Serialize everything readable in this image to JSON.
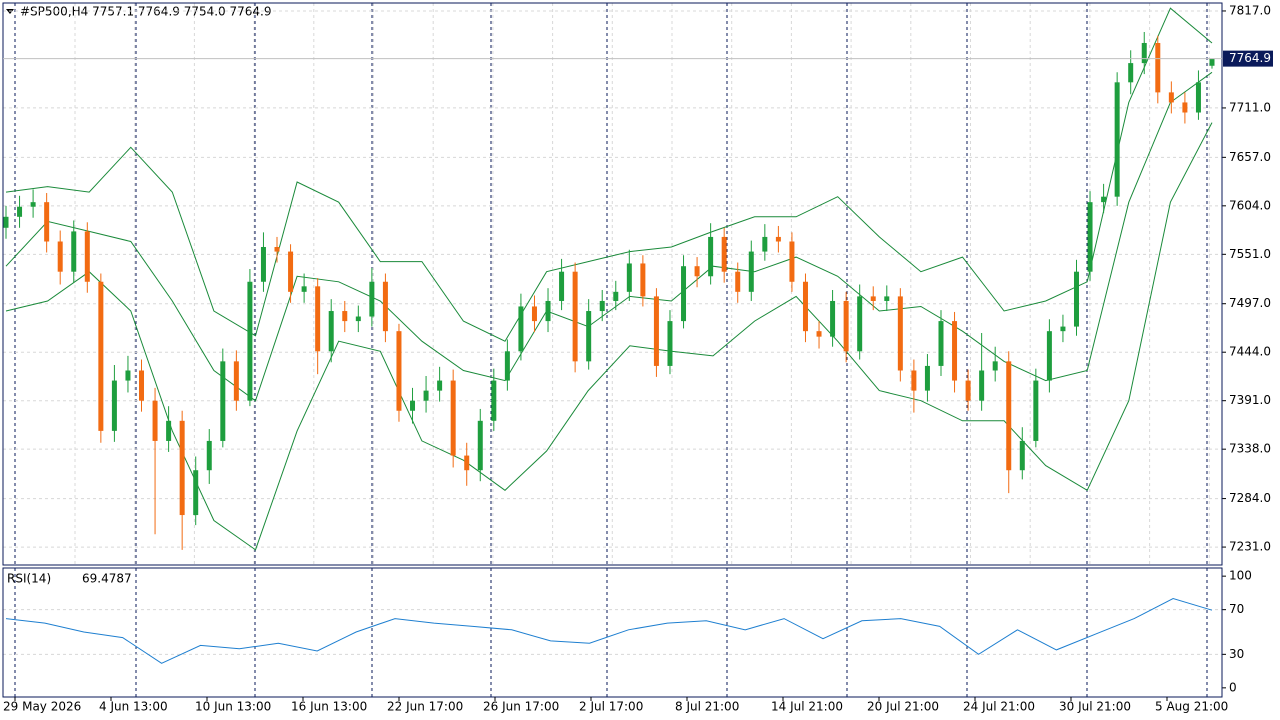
{
  "chart_data": [
    {
      "type": "candlestick",
      "title": "#SP500,H4  7757.1 7764.9 7754.0 7764.9",
      "up_color": "#1e9e3e",
      "down_color": "#f26b12",
      "band_color": "#1a8a3a",
      "grid": true,
      "ylim": [
        7211.4,
        7825.7
      ],
      "yticks": [
        {
          "value": 7817,
          "label": "7817.0"
        },
        {
          "value": 7711,
          "label": "7711.0"
        },
        {
          "value": 7657,
          "label": "7657.0"
        },
        {
          "value": 7604,
          "label": "7604.0"
        },
        {
          "value": 7551,
          "label": "7551.0"
        },
        {
          "value": 7497,
          "label": "7497.0"
        },
        {
          "value": 7444,
          "label": "7444.0"
        },
        {
          "value": 7391,
          "label": "7391.0"
        },
        {
          "value": 7338,
          "label": "7338.0"
        },
        {
          "value": 7284,
          "label": "7284.0"
        },
        {
          "value": 7231,
          "label": "7231.0"
        }
      ],
      "x_labels": [
        "29 May 2026",
        "4 Jun 13:00",
        "10 Jun 13:00",
        "16 Jun 13:00",
        "22 Jun 17:00",
        "26 Jun 17:00",
        "2 Jul 17:00",
        "8 Jul 21:00",
        "14 Jul 21:00",
        "20 Jul 21:00",
        "24 Jul 21:00",
        "30 Jul 21:00",
        "5 Aug 21:00"
      ],
      "open": [
        7580,
        7592,
        7603,
        7608,
        7565,
        7532,
        7576,
        7521,
        7358,
        7413,
        7424,
        7391,
        7347,
        7369,
        7266,
        7315,
        7347,
        7434,
        7391,
        7521,
        7559,
        7554,
        7510,
        7516,
        7445,
        7489,
        7478,
        7483,
        7521,
        7467,
        7380,
        7391,
        7402,
        7413,
        7331,
        7315,
        7369,
        7413,
        7445,
        7494,
        7478,
        7500,
        7532,
        7434,
        7489,
        7500,
        7510,
        7541,
        7505,
        7429,
        7478,
        7538,
        7527,
        7570,
        7532,
        7510,
        7554,
        7570,
        7565,
        7521,
        7467,
        7461,
        7500,
        7445,
        7505,
        7500,
        7505,
        7424,
        7402,
        7429,
        7478,
        7413,
        7391,
        7424,
        7434,
        7315,
        7347,
        7413,
        7467,
        7472,
        7532,
        7608,
        7614,
        7739,
        7760,
        7782,
        7728,
        7717,
        7706,
        7757.1
      ],
      "high": [
        7604,
        7615,
        7622,
        7618,
        7577,
        7588,
        7586,
        7530,
        7430,
        7440,
        7436,
        7405,
        7385,
        7380,
        7330,
        7360,
        7448,
        7446,
        7535,
        7575,
        7570,
        7562,
        7530,
        7525,
        7502,
        7500,
        7495,
        7536,
        7530,
        7475,
        7405,
        7418,
        7428,
        7425,
        7345,
        7382,
        7426,
        7458,
        7508,
        7506,
        7514,
        7546,
        7542,
        7502,
        7512,
        7522,
        7556,
        7550,
        7514,
        7490,
        7550,
        7548,
        7585,
        7580,
        7542,
        7566,
        7584,
        7582,
        7575,
        7530,
        7478,
        7512,
        7510,
        7518,
        7516,
        7517,
        7514,
        7436,
        7442,
        7490,
        7488,
        7425,
        7465,
        7450,
        7445,
        7362,
        7426,
        7480,
        7485,
        7545,
        7620,
        7628,
        7750,
        7774,
        7794,
        7790,
        7740,
        7728,
        7752,
        7764.9
      ],
      "low": [
        7568,
        7580,
        7591,
        7553,
        7518,
        7520,
        7509,
        7345,
        7346,
        7400,
        7379,
        7245,
        7335,
        7228,
        7255,
        7300,
        7340,
        7380,
        7385,
        7510,
        7542,
        7498,
        7498,
        7420,
        7433,
        7466,
        7466,
        7472,
        7455,
        7368,
        7366,
        7378,
        7390,
        7318,
        7298,
        7303,
        7358,
        7402,
        7435,
        7466,
        7466,
        7490,
        7422,
        7425,
        7478,
        7490,
        7500,
        7494,
        7417,
        7420,
        7470,
        7515,
        7518,
        7520,
        7498,
        7500,
        7544,
        7553,
        7510,
        7455,
        7448,
        7450,
        7433,
        7436,
        7490,
        7489,
        7412,
        7378,
        7390,
        7418,
        7400,
        7380,
        7380,
        7412,
        7290,
        7305,
        7340,
        7400,
        7455,
        7462,
        7522,
        7596,
        7604,
        7726,
        7748,
        7716,
        7705,
        7694,
        7698,
        7754.0
      ],
      "close": [
        7592,
        7603,
        7608,
        7565,
        7532,
        7576,
        7521,
        7358,
        7413,
        7424,
        7391,
        7347,
        7369,
        7266,
        7315,
        7347,
        7434,
        7391,
        7521,
        7559,
        7554,
        7510,
        7516,
        7445,
        7489,
        7478,
        7483,
        7521,
        7467,
        7380,
        7391,
        7402,
        7413,
        7331,
        7315,
        7369,
        7413,
        7445,
        7494,
        7478,
        7500,
        7532,
        7434,
        7489,
        7500,
        7510,
        7541,
        7505,
        7429,
        7478,
        7538,
        7527,
        7570,
        7532,
        7510,
        7554,
        7570,
        7565,
        7521,
        7467,
        7461,
        7500,
        7445,
        7505,
        7500,
        7505,
        7424,
        7402,
        7429,
        7478,
        7413,
        7391,
        7424,
        7434,
        7315,
        7347,
        7413,
        7467,
        7472,
        7532,
        7608,
        7614,
        7739,
        7760,
        7782,
        7728,
        7717,
        7706,
        7739,
        7764.9
      ],
      "series": [
        {
          "values": [
            7619,
            7625,
            7619,
            7668,
            7619,
            7489,
            7462,
            7630,
            7608,
            7543,
            7543,
            7478,
            7456,
            7532,
            7543,
            7554,
            7559,
            7576,
            7592,
            7592,
            7614,
            7570,
            7532,
            7548,
            7489,
            7500,
            7521,
            7717,
            7820,
            7782
          ]
        },
        {
          "values": [
            7538,
            7587,
            7576,
            7565,
            7500,
            7424,
            7391,
            7527,
            7521,
            7500,
            7456,
            7424,
            7413,
            7489,
            7472,
            7505,
            7500,
            7538,
            7532,
            7548,
            7527,
            7489,
            7494,
            7467,
            7434,
            7413,
            7424,
            7608,
            7717,
            7750
          ]
        },
        {
          "values": [
            7489,
            7500,
            7532,
            7489,
            7358,
            7260,
            7228,
            7358,
            7456,
            7445,
            7347,
            7326,
            7293,
            7336,
            7402,
            7451,
            7445,
            7440,
            7478,
            7505,
            7456,
            7402,
            7391,
            7369,
            7369,
            7320,
            7293,
            7391,
            7608,
            7695
          ]
        }
      ]
    },
    {
      "type": "line",
      "title": "RSI(14)",
      "color": "#1e7fd0",
      "ylim": [
        -8.2,
        107.3
      ],
      "yticks": [
        100,
        70,
        30,
        0
      ],
      "guides": [
        70,
        30
      ],
      "values": [
        62,
        58,
        50,
        45,
        22,
        38,
        35,
        40,
        33,
        50,
        62,
        58,
        55,
        52,
        42,
        40,
        52,
        58,
        60,
        52,
        62,
        44,
        60,
        62,
        55,
        30,
        52,
        34,
        48,
        62,
        80,
        69.4787
      ]
    }
  ]
}
